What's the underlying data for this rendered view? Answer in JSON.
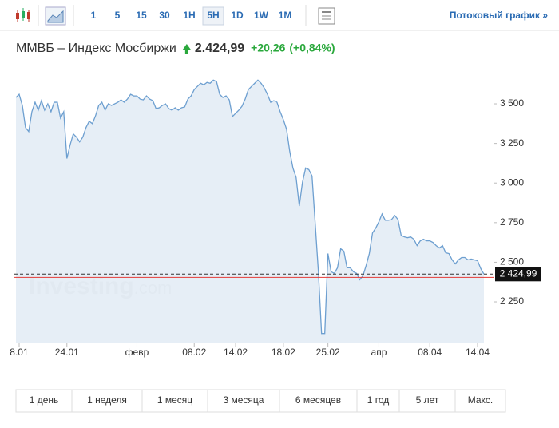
{
  "toolbar": {
    "intervals": [
      "1",
      "5",
      "15",
      "30",
      "1H",
      "5H",
      "1D",
      "1W",
      "1M"
    ],
    "active_index": 5,
    "link": "Потоковый график »"
  },
  "header": {
    "title": "ММВБ – Индекс Мосбиржи",
    "price": "2.424,99",
    "change": "+20,26",
    "change_pct": "(+0,84%)"
  },
  "chart_data": {
    "type": "area",
    "color": "#6d9fd0",
    "fill": "#e3ecf5",
    "watermark": [
      "Investing",
      ".com"
    ],
    "values": [
      3540,
      3560,
      3490,
      3350,
      3325,
      3450,
      3510,
      3460,
      3520,
      3460,
      3500,
      3450,
      3510,
      3510,
      3410,
      3450,
      3155,
      3240,
      3310,
      3290,
      3260,
      3290,
      3350,
      3390,
      3375,
      3425,
      3490,
      3510,
      3460,
      3500,
      3490,
      3500,
      3510,
      3525,
      3510,
      3530,
      3560,
      3550,
      3550,
      3530,
      3525,
      3550,
      3530,
      3520,
      3470,
      3475,
      3490,
      3500,
      3470,
      3460,
      3475,
      3460,
      3475,
      3480,
      3530,
      3550,
      3590,
      3610,
      3630,
      3620,
      3635,
      3630,
      3650,
      3640,
      3560,
      3540,
      3550,
      3525,
      3420,
      3440,
      3460,
      3485,
      3530,
      3590,
      3610,
      3630,
      3650,
      3630,
      3600,
      3560,
      3510,
      3520,
      3510,
      3450,
      3400,
      3340,
      3200,
      3095,
      3035,
      2855,
      3005,
      3095,
      3085,
      3045,
      2745,
      2440,
      2050,
      2050,
      2555,
      2440,
      2430,
      2465,
      2585,
      2570,
      2465,
      2465,
      2440,
      2430,
      2390,
      2415,
      2480,
      2555,
      2685,
      2715,
      2755,
      2805,
      2765,
      2765,
      2770,
      2795,
      2770,
      2670,
      2660,
      2655,
      2660,
      2645,
      2605,
      2635,
      2645,
      2635,
      2635,
      2625,
      2605,
      2590,
      2605,
      2560,
      2555,
      2515,
      2490,
      2515,
      2530,
      2530,
      2515,
      2520,
      2515,
      2510,
      2460,
      2424.99
    ],
    "ylim": [
      1988,
      3727
    ],
    "yticks": [
      {
        "value": 2250,
        "label": "2 250"
      },
      {
        "value": 2500,
        "label": "2 500"
      },
      {
        "value": 2750,
        "label": "2 750"
      },
      {
        "value": 3000,
        "label": "3 000"
      },
      {
        "value": 3250,
        "label": "3 250"
      },
      {
        "value": 3500,
        "label": "3 500"
      }
    ],
    "xticks": [
      {
        "value": 1,
        "label": "8.01"
      },
      {
        "value": 16,
        "label": "24.01"
      },
      {
        "value": 38,
        "label": "февр"
      },
      {
        "value": 56,
        "label": "08.02"
      },
      {
        "value": 69,
        "label": "14.02"
      },
      {
        "value": 84,
        "label": "18.02"
      },
      {
        "value": 98,
        "label": "25.02"
      },
      {
        "value": 114,
        "label": "апр"
      },
      {
        "value": 130,
        "label": "08.04"
      },
      {
        "value": 145,
        "label": "14.04"
      }
    ],
    "last_price": {
      "value": 2424.99,
      "label": "2 424,99"
    },
    "reference_line": 2404.73,
    "ranges": [
      "1 день",
      "1 неделя",
      "1 месяц",
      "3 месяца",
      "6 месяцев",
      "1 год",
      "5 лет",
      "Макс."
    ]
  }
}
